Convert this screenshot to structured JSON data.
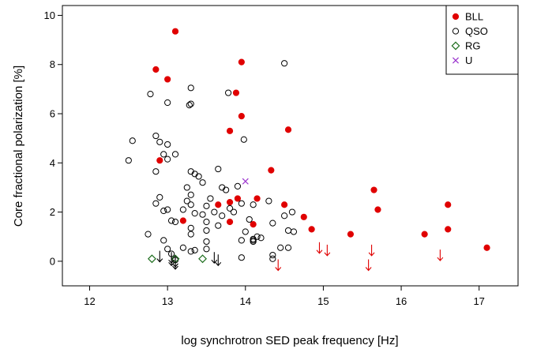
{
  "chart_data": {
    "type": "scatter",
    "title": "",
    "xlabel": "log synchrotron SED peak frequency [Hz]",
    "ylabel": "Core fractional polarization [%]",
    "xlim": [
      11.65,
      17.5
    ],
    "ylim": [
      -1.0,
      10.4
    ],
    "xticks": [
      12,
      13,
      14,
      15,
      16,
      17
    ],
    "yticks": [
      0,
      2,
      4,
      6,
      8,
      10
    ],
    "grid": false,
    "legend_position": "top-right",
    "series": [
      {
        "name": "BLL",
        "marker": "filled-circle",
        "color": "#e00000",
        "points": [
          [
            13.1,
            9.35
          ],
          [
            13.95,
            8.1
          ],
          [
            12.85,
            7.8
          ],
          [
            13.0,
            7.4
          ],
          [
            13.88,
            6.85
          ],
          [
            13.95,
            5.9
          ],
          [
            14.55,
            5.35
          ],
          [
            13.8,
            5.3
          ],
          [
            12.9,
            4.1
          ],
          [
            14.33,
            3.7
          ],
          [
            15.65,
            2.9
          ],
          [
            13.9,
            2.55
          ],
          [
            14.15,
            2.55
          ],
          [
            13.8,
            2.4
          ],
          [
            13.65,
            2.3
          ],
          [
            14.5,
            2.3
          ],
          [
            15.7,
            2.1
          ],
          [
            16.6,
            2.3
          ],
          [
            14.75,
            1.8
          ],
          [
            13.2,
            1.65
          ],
          [
            13.8,
            1.6
          ],
          [
            14.1,
            1.5
          ],
          [
            14.85,
            1.3
          ],
          [
            16.6,
            1.3
          ],
          [
            15.35,
            1.1
          ],
          [
            16.3,
            1.1
          ],
          [
            17.1,
            0.55
          ]
        ]
      },
      {
        "name": "QSO",
        "marker": "open-circle",
        "color": "#000000",
        "points": [
          [
            14.5,
            8.05
          ],
          [
            13.3,
            7.05
          ],
          [
            12.78,
            6.8
          ],
          [
            13.78,
            6.85
          ],
          [
            13.0,
            6.45
          ],
          [
            13.28,
            6.35
          ],
          [
            13.3,
            6.4
          ],
          [
            12.55,
            4.9
          ],
          [
            12.85,
            5.1
          ],
          [
            12.9,
            4.85
          ],
          [
            13.0,
            4.75
          ],
          [
            13.98,
            4.95
          ],
          [
            12.5,
            4.1
          ],
          [
            12.95,
            4.35
          ],
          [
            13.1,
            4.35
          ],
          [
            13.0,
            4.15
          ],
          [
            13.65,
            3.75
          ],
          [
            12.85,
            3.65
          ],
          [
            13.3,
            3.65
          ],
          [
            13.35,
            3.55
          ],
          [
            13.4,
            3.45
          ],
          [
            13.45,
            3.2
          ],
          [
            13.25,
            3.0
          ],
          [
            13.7,
            3.0
          ],
          [
            13.9,
            3.05
          ],
          [
            13.75,
            2.9
          ],
          [
            13.3,
            2.7
          ],
          [
            12.9,
            2.6
          ],
          [
            13.25,
            2.45
          ],
          [
            13.55,
            2.55
          ],
          [
            14.3,
            2.45
          ],
          [
            12.85,
            2.35
          ],
          [
            13.3,
            2.3
          ],
          [
            13.5,
            2.25
          ],
          [
            13.95,
            2.35
          ],
          [
            13.0,
            2.1
          ],
          [
            13.2,
            2.1
          ],
          [
            12.95,
            2.05
          ],
          [
            13.35,
            1.95
          ],
          [
            13.6,
            2.0
          ],
          [
            13.8,
            2.15
          ],
          [
            13.85,
            2.0
          ],
          [
            14.6,
            2.0
          ],
          [
            13.45,
            1.9
          ],
          [
            13.7,
            1.85
          ],
          [
            14.5,
            1.85
          ],
          [
            13.05,
            1.65
          ],
          [
            13.1,
            1.6
          ],
          [
            13.5,
            1.6
          ],
          [
            14.35,
            1.55
          ],
          [
            13.65,
            1.45
          ],
          [
            13.3,
            1.35
          ],
          [
            13.5,
            1.25
          ],
          [
            14.0,
            1.2
          ],
          [
            14.15,
            1.0
          ],
          [
            14.1,
            0.9
          ],
          [
            13.3,
            1.1
          ],
          [
            12.75,
            1.1
          ],
          [
            12.95,
            0.85
          ],
          [
            13.5,
            0.8
          ],
          [
            13.95,
            0.85
          ],
          [
            14.2,
            0.95
          ],
          [
            14.1,
            0.85
          ],
          [
            14.1,
            0.8
          ],
          [
            14.55,
            0.55
          ],
          [
            14.45,
            0.55
          ],
          [
            13.2,
            0.55
          ],
          [
            13.35,
            0.45
          ],
          [
            13.0,
            0.5
          ],
          [
            13.5,
            0.5
          ],
          [
            13.3,
            0.4
          ],
          [
            13.05,
            0.3
          ],
          [
            14.35,
            0.25
          ],
          [
            14.35,
            0.1
          ],
          [
            13.95,
            0.15
          ],
          [
            13.1,
            0.05
          ],
          [
            14.55,
            1.25
          ],
          [
            14.62,
            1.2
          ],
          [
            14.1,
            2.3
          ],
          [
            14.05,
            1.7
          ]
        ]
      },
      {
        "name": "RG",
        "marker": "open-diamond",
        "color": "#1e6e1e",
        "points": [
          [
            12.8,
            0.1
          ],
          [
            13.1,
            0.1
          ],
          [
            13.45,
            0.1
          ]
        ]
      },
      {
        "name": "U",
        "marker": "cross",
        "color": "#9a32cd",
        "points": [
          [
            14.0,
            3.25
          ]
        ]
      }
    ],
    "upper_limits": [
      {
        "color": "#000000",
        "points": [
          [
            12.9,
            0.2
          ],
          [
            13.05,
            0.15
          ],
          [
            13.05,
            0.05
          ],
          [
            13.1,
            0.0
          ],
          [
            13.1,
            -0.1
          ],
          [
            13.6,
            0.15
          ],
          [
            13.65,
            0.05
          ]
        ]
      },
      {
        "color": "#e00000",
        "points": [
          [
            14.42,
            -0.15
          ],
          [
            14.95,
            0.55
          ],
          [
            15.05,
            0.45
          ],
          [
            15.62,
            0.45
          ],
          [
            15.58,
            -0.15
          ],
          [
            16.5,
            0.25
          ]
        ]
      }
    ]
  }
}
